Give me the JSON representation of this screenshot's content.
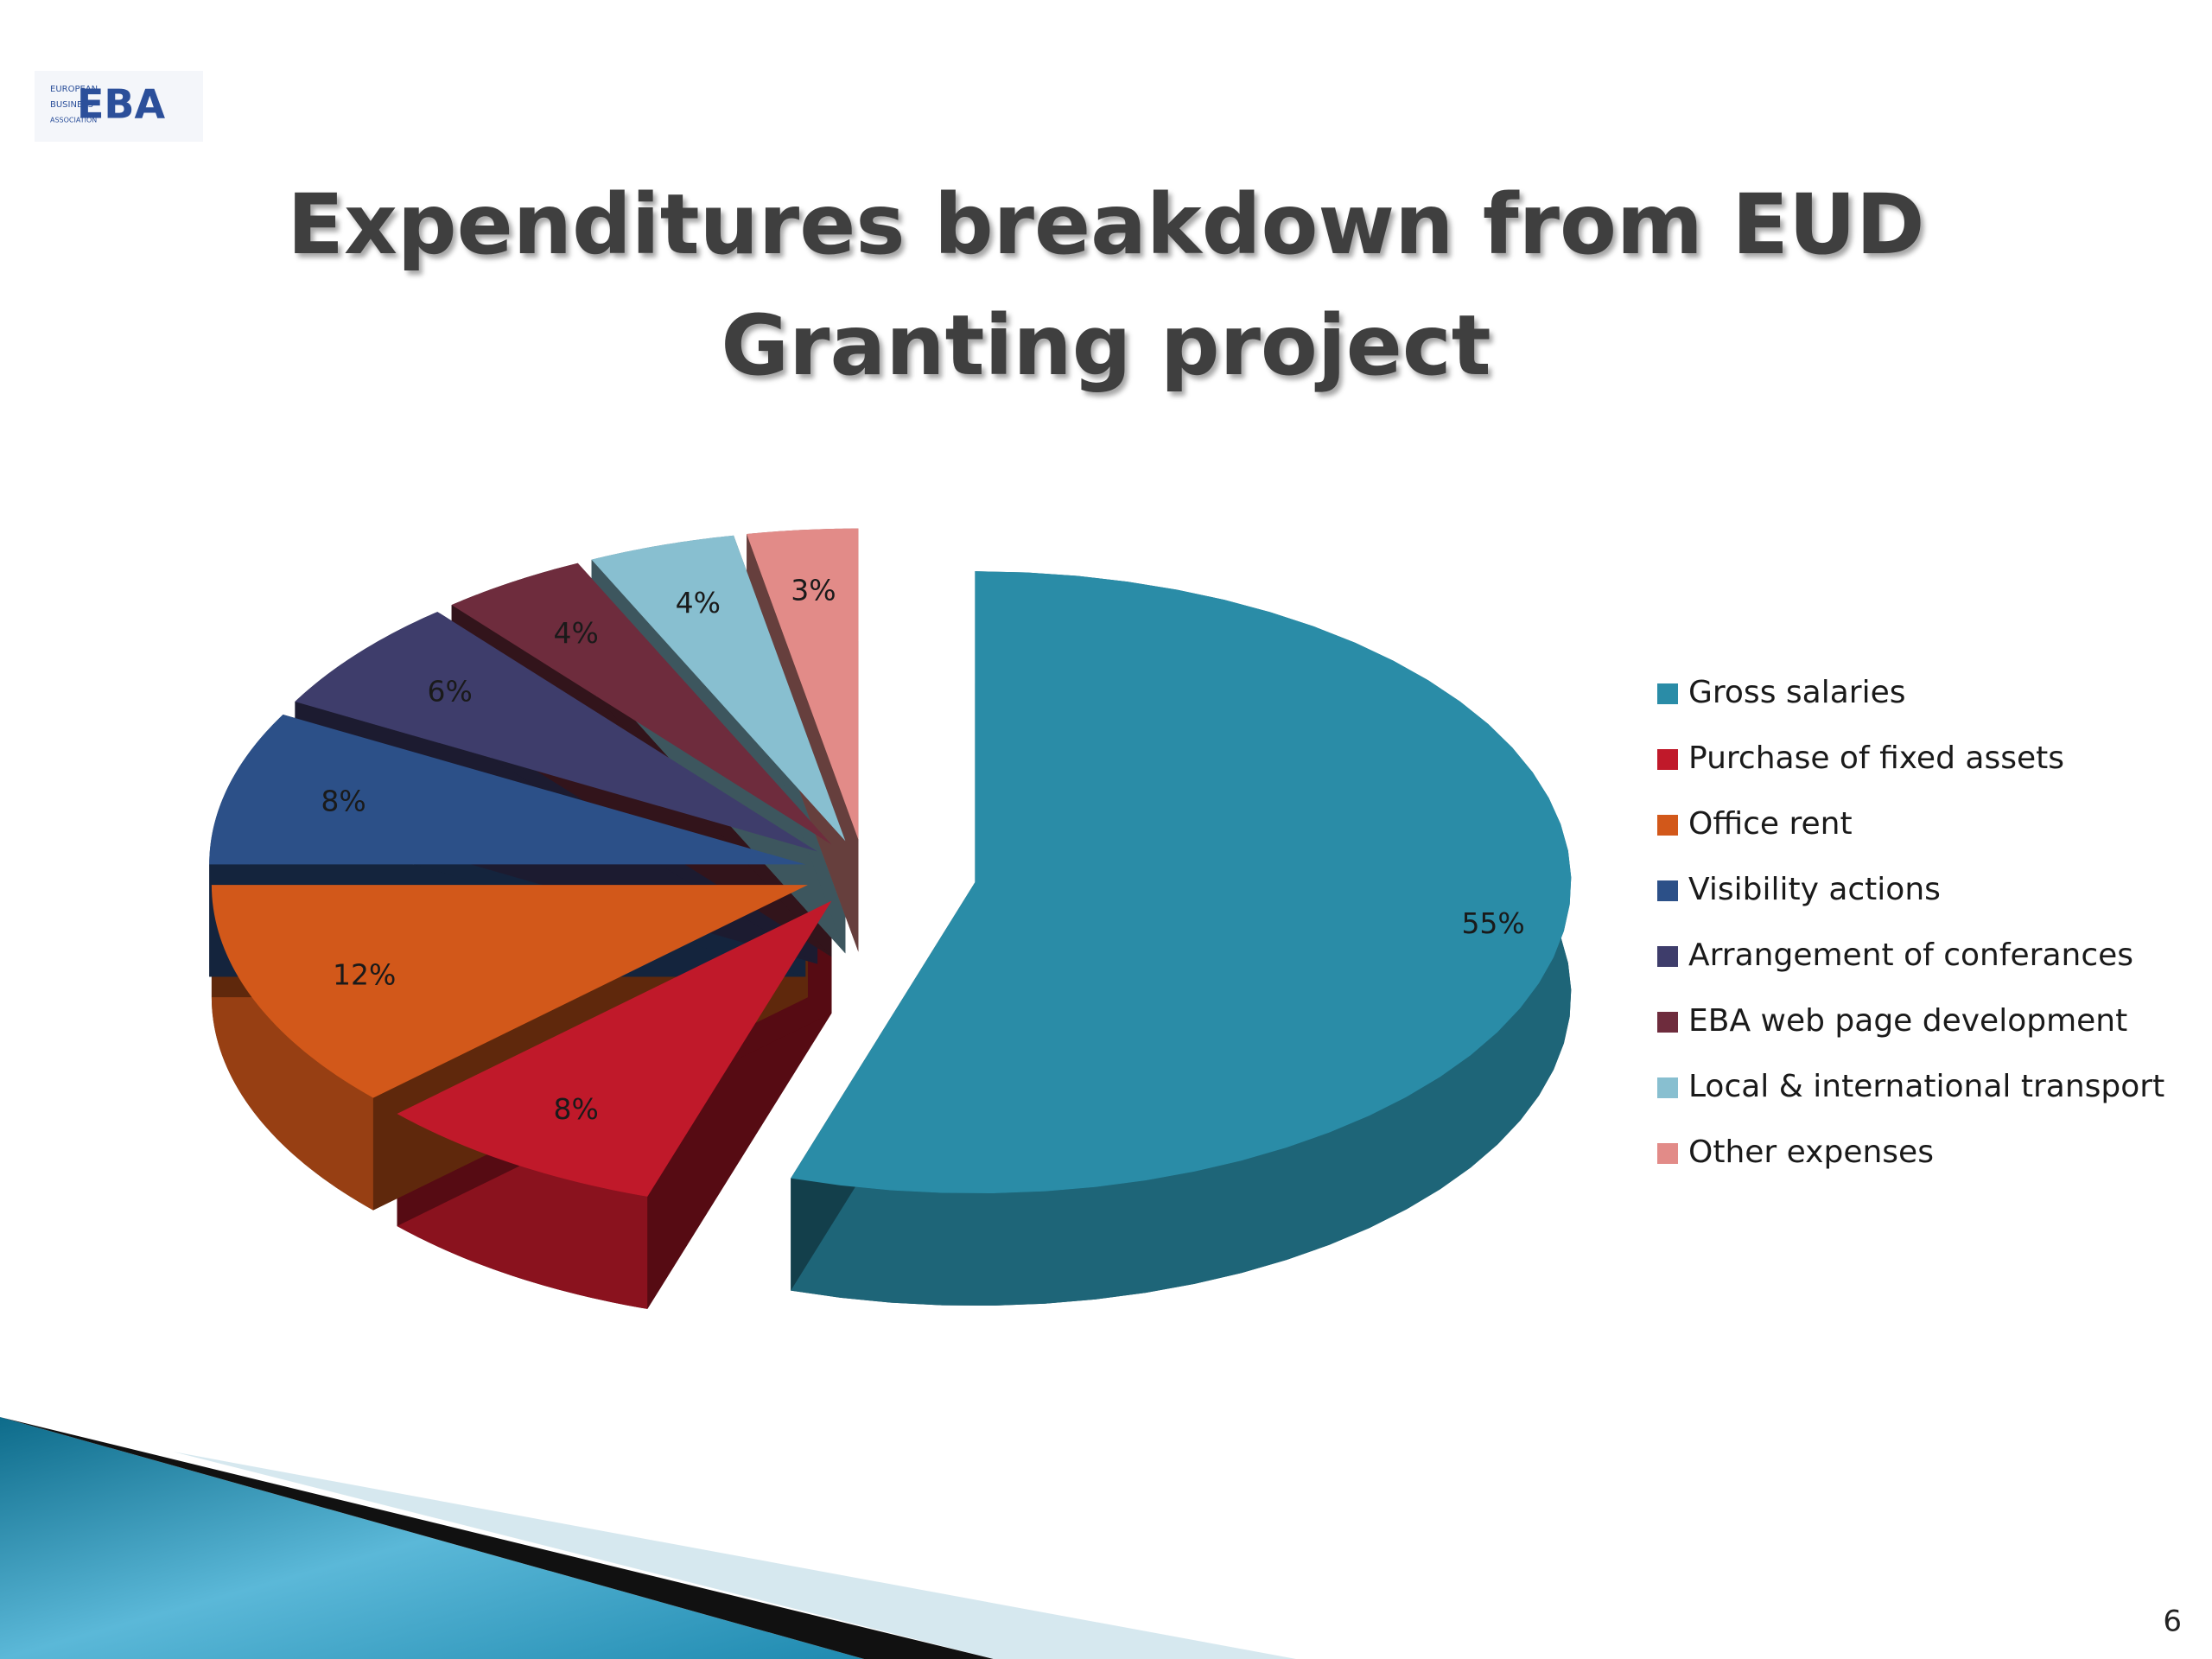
{
  "slide": {
    "logo": {
      "mark": "EBA",
      "lines": [
        "EUROPEAN",
        "BUSINESS",
        "ASSOCIATION"
      ]
    },
    "page_number": "6"
  },
  "chart_data": {
    "type": "pie3d",
    "title": "Expenditures breakdown from EUD Granting project",
    "categories": [
      "Gross salaries",
      "Purchase of fixed assets",
      "Office rent",
      "Visibility actions",
      "Arrangement of conferances",
      "EBA web page development",
      "Local & international transport",
      "Other expenses"
    ],
    "values": [
      55,
      8,
      12,
      8,
      6,
      4,
      4,
      3
    ],
    "value_labels": [
      "55%",
      "8%",
      "12%",
      "8%",
      "6%",
      "4%",
      "4%",
      "3%"
    ],
    "colors": [
      "#2a8ca7",
      "#c0192a",
      "#d2581a",
      "#2c5088",
      "#3e3d6b",
      "#6e2c3d",
      "#88bfd0",
      "#e28b88"
    ],
    "legend": "right"
  }
}
